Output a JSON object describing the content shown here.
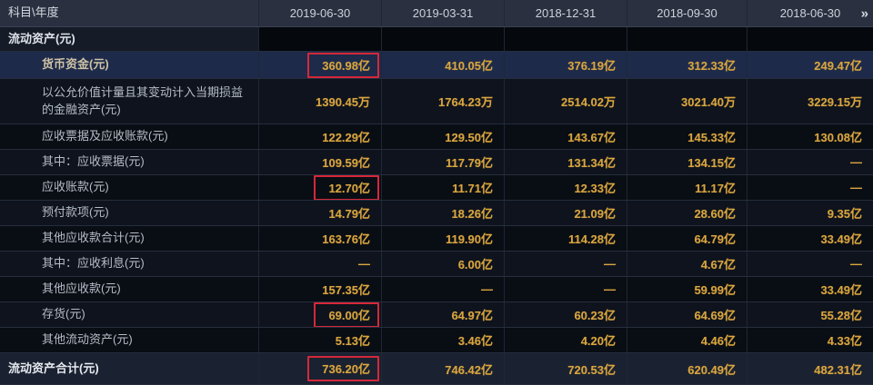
{
  "table": {
    "corner_header": "科目\\年度",
    "date_columns": [
      "2019-06-30",
      "2019-03-31",
      "2018-12-31",
      "2018-09-30",
      "2018-06-30"
    ],
    "more_indicator": "»",
    "colors": {
      "value_gold": "#d9a53f",
      "highlight_row_bg": "#1d2a4a",
      "red_box_border": "#d5283a",
      "header_bg": "#2a303f"
    },
    "rows": [
      {
        "label": "流动资产(元)",
        "kind": "section",
        "indent": 0,
        "values": [
          "",
          "",
          "",
          "",
          ""
        ]
      },
      {
        "label": "货币资金(元)",
        "kind": "data",
        "indent": 1,
        "highlight": true,
        "values": [
          "360.98亿",
          "410.05亿",
          "376.19亿",
          "312.33亿",
          "249.47亿"
        ],
        "redbox": [
          0
        ]
      },
      {
        "label": "以公允价值计量且其变动计入当期损益的金融资产(元)",
        "kind": "data",
        "indent": 1,
        "tall": true,
        "values": [
          "1390.45万",
          "1764.23万",
          "2514.02万",
          "3021.40万",
          "3229.15万"
        ]
      },
      {
        "label": "应收票据及应收账款(元)",
        "kind": "data",
        "indent": 1,
        "values": [
          "122.29亿",
          "129.50亿",
          "143.67亿",
          "145.33亿",
          "130.08亿"
        ]
      },
      {
        "label": "其中：应收票据(元)",
        "kind": "data",
        "indent": 1,
        "values": [
          "109.59亿",
          "117.79亿",
          "131.34亿",
          "134.15亿",
          "—"
        ]
      },
      {
        "label": "应收账款(元)",
        "kind": "data",
        "indent": 1,
        "values": [
          "12.70亿",
          "11.71亿",
          "12.33亿",
          "11.17亿",
          "—"
        ],
        "redbox": [
          0
        ]
      },
      {
        "label": "预付款项(元)",
        "kind": "data",
        "indent": 1,
        "values": [
          "14.79亿",
          "18.26亿",
          "21.09亿",
          "28.60亿",
          "9.35亿"
        ]
      },
      {
        "label": "其他应收款合计(元)",
        "kind": "data",
        "indent": 1,
        "values": [
          "163.76亿",
          "119.90亿",
          "114.28亿",
          "64.79亿",
          "33.49亿"
        ]
      },
      {
        "label": "其中：应收利息(元)",
        "kind": "data",
        "indent": 1,
        "values": [
          "—",
          "6.00亿",
          "—",
          "4.67亿",
          "—"
        ]
      },
      {
        "label": "其他应收款(元)",
        "kind": "data",
        "indent": 1,
        "values": [
          "157.35亿",
          "—",
          "—",
          "59.99亿",
          "33.49亿"
        ]
      },
      {
        "label": "存货(元)",
        "kind": "data",
        "indent": 1,
        "values": [
          "69.00亿",
          "64.97亿",
          "60.23亿",
          "64.69亿",
          "55.28亿"
        ],
        "redbox": [
          0
        ]
      },
      {
        "label": "其他流动资产(元)",
        "kind": "data",
        "indent": 1,
        "values": [
          "5.13亿",
          "3.46亿",
          "4.20亿",
          "4.46亿",
          "4.33亿"
        ]
      },
      {
        "label": "流动资产合计(元)",
        "kind": "total",
        "indent": 0,
        "values": [
          "736.20亿",
          "746.42亿",
          "720.53亿",
          "620.49亿",
          "482.31亿"
        ],
        "redbox": [
          0
        ]
      }
    ]
  }
}
